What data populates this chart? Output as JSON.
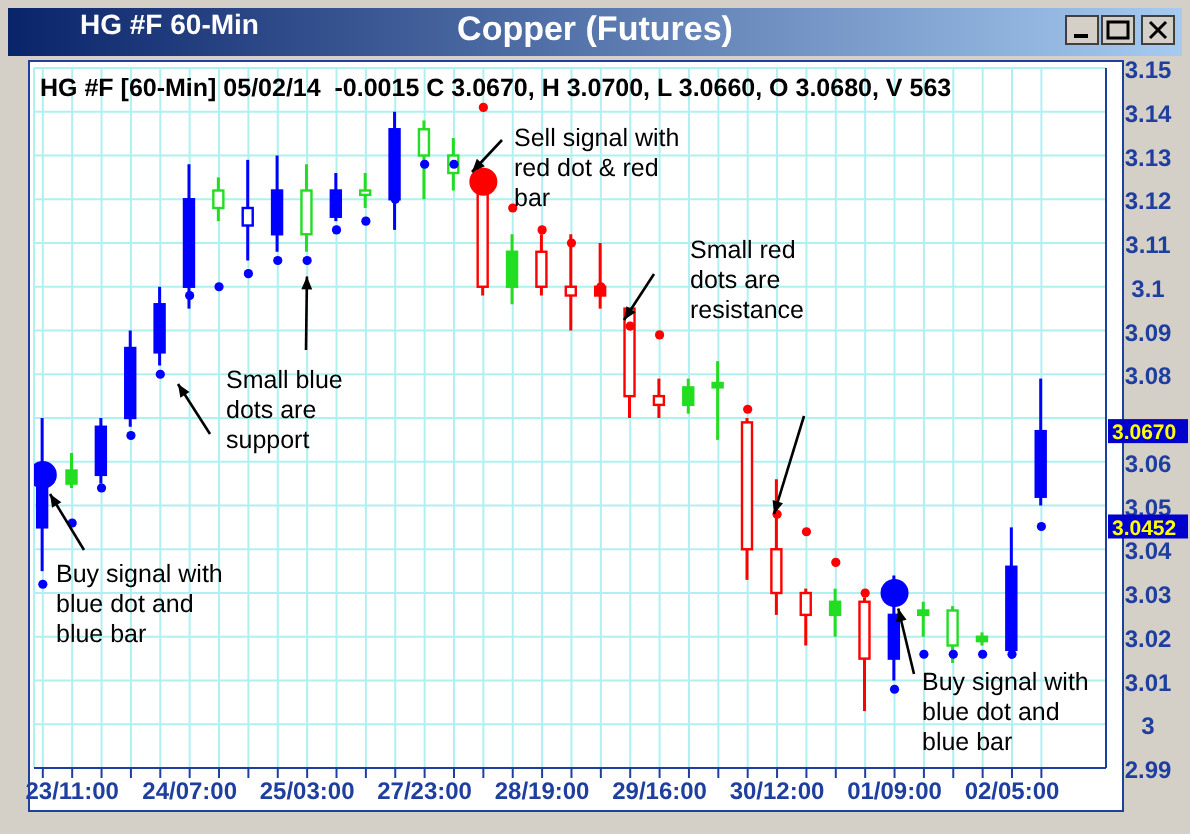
{
  "chart_data": {
    "type": "candlestick",
    "title": "Copper (Futures)",
    "subtitle": "HG #F [60-Min] 05/02/14  -0.0015 C 3.0670, H 3.0700, L 3.0660, O 3.0680, V 563",
    "annotations": [
      "HG #F 60-Min",
      "Sell signal with red dot & red bar",
      "Small red dots are resistance",
      {
        "text": "Small blue dots are support",
        "x": "25/03:00",
        "y": 3.106
      },
      "Buy signal with blue dot and blue bar",
      {
        "text": "Buy signal with blue dot and blue bar",
        "x": "01/09:00",
        "y": 3.03
      }
    ],
    "categories": [
      null,
      "23/11:00",
      null,
      null,
      null,
      "24/07:00",
      null,
      null,
      null,
      "25/03:00",
      null,
      null,
      null,
      "27/23:00",
      null,
      null,
      null,
      "28/19:00",
      null,
      null,
      null,
      "29/16:00",
      null,
      null,
      null,
      "30/12:00",
      null,
      null,
      null,
      "01/09:00",
      null,
      null,
      null,
      "02/05:00",
      null
    ],
    "ohlc": [
      [
        3.045,
        3.07,
        3.035,
        3.055
      ],
      [
        3.055,
        3.062,
        3.054,
        3.058
      ],
      [
        3.057,
        3.07,
        3.055,
        3.068
      ],
      [
        3.07,
        3.09,
        3.068,
        3.086
      ],
      [
        3.085,
        3.1,
        3.082,
        3.096
      ],
      [
        3.1,
        3.128,
        3.095,
        3.12
      ],
      [
        3.122,
        3.125,
        3.115,
        3.118
      ],
      [
        3.118,
        3.129,
        3.106,
        3.114
      ],
      [
        3.112,
        3.13,
        3.108,
        3.122
      ],
      [
        3.122,
        3.128,
        3.108,
        3.112
      ],
      [
        3.116,
        3.126,
        3.115,
        3.122
      ],
      [
        3.122,
        3.126,
        3.118,
        3.121
      ],
      [
        3.12,
        3.14,
        3.113,
        3.136
      ],
      [
        3.136,
        3.138,
        3.12,
        3.13
      ],
      [
        3.13,
        3.134,
        3.122,
        3.126
      ],
      [
        3.125,
        3.126,
        3.098,
        3.1
      ],
      [
        3.1,
        3.112,
        3.096,
        3.108
      ],
      [
        3.108,
        3.112,
        3.098,
        3.1
      ],
      [
        3.1,
        3.112,
        3.09,
        3.098
      ],
      [
        3.098,
        3.11,
        3.095,
        3.1
      ],
      [
        3.095,
        3.095,
        3.07,
        3.075
      ],
      [
        3.075,
        3.079,
        3.07,
        3.073
      ],
      [
        3.073,
        3.079,
        3.071,
        3.077
      ],
      [
        3.077,
        3.083,
        3.065,
        3.078
      ],
      [
        3.069,
        3.07,
        3.033,
        3.04
      ],
      [
        3.04,
        3.056,
        3.025,
        3.03
      ],
      [
        3.03,
        3.031,
        3.018,
        3.025
      ],
      [
        3.025,
        3.031,
        3.02,
        3.028
      ],
      [
        3.028,
        3.029,
        3.003,
        3.015
      ],
      [
        3.015,
        3.034,
        3.01,
        3.025
      ],
      [
        3.025,
        3.028,
        3.02,
        3.026
      ],
      [
        3.026,
        3.027,
        3.014,
        3.018
      ],
      [
        3.019,
        3.021,
        3.018,
        3.02
      ],
      [
        3.017,
        3.045,
        3.015,
        3.036
      ],
      [
        3.052,
        3.079,
        3.05,
        3.067
      ]
    ],
    "colors": [
      "#0000ff",
      "#22dd22",
      "#0000ff",
      "#0000ff",
      "#0000ff",
      "#0000ff",
      "#22dd22",
      "#0000ff",
      "#0000ff",
      "#22dd22",
      "#0000ff",
      "#22dd22",
      "#0000ff",
      "#22dd22",
      "#22dd22",
      "#ff0000",
      "#22dd22",
      "#ff0000",
      "#ff0000",
      "#ff0000",
      "#ff0000",
      "#ff0000",
      "#22dd22",
      "#22dd22",
      "#ff0000",
      "#ff0000",
      "#ff0000",
      "#22dd22",
      "#ff0000",
      "#0000ff",
      "#22dd22",
      "#22dd22",
      "#22dd22",
      "#0000ff",
      "#0000ff"
    ],
    "series": [
      {
        "type": "scatter",
        "color": "#0000ff",
        "values": [
          3.032,
          3.046,
          3.054,
          3.066,
          3.08,
          3.098,
          3.1,
          3.103,
          3.106,
          3.106,
          3.113,
          3.115,
          3.12,
          3.128,
          3.128,
          null,
          null,
          null,
          null,
          null,
          null,
          null,
          null,
          null,
          null,
          null,
          null,
          null,
          null,
          3.008,
          3.016,
          3.016,
          3.016,
          3.016,
          3.0452
        ]
      },
      {
        "type": "scatter",
        "color": "#ff0000",
        "values": [
          null,
          null,
          null,
          null,
          null,
          null,
          null,
          null,
          null,
          null,
          null,
          null,
          null,
          null,
          null,
          3.141,
          3.118,
          3.113,
          3.11,
          3.1,
          3.091,
          3.089,
          null,
          null,
          3.072,
          3.048,
          3.044,
          3.037,
          3.03,
          null,
          null,
          null,
          null,
          null,
          null
        ]
      },
      {
        "type": "scatter",
        "color": "#0000ff",
        "values": [
          3.057,
          null,
          null,
          null,
          null,
          null,
          null,
          null,
          null,
          null,
          null,
          null,
          null,
          null,
          null,
          null,
          null,
          null,
          null,
          null,
          null,
          null,
          null,
          null,
          null,
          null,
          null,
          null,
          null,
          3.03,
          null,
          null,
          null,
          null,
          null
        ]
      },
      {
        "type": "scatter",
        "color": "#ff0000",
        "values": [
          null,
          null,
          null,
          null,
          null,
          null,
          null,
          null,
          null,
          null,
          null,
          null,
          null,
          null,
          null,
          3.124,
          null,
          null,
          null,
          null,
          null,
          null,
          null,
          null,
          null,
          null,
          null,
          null,
          null,
          null,
          null,
          null,
          null,
          null,
          null
        ]
      }
    ],
    "marker": "circle",
    "grid": true,
    "ylim": [
      2.99,
      3.15
    ],
    "yticks": [
      2.99,
      3,
      3.01,
      3.02,
      3.03,
      3.04,
      3.05,
      3.06,
      {
        "value": 3.07,
        "label": null
      },
      3.08,
      3.09,
      3.1,
      3.11,
      3.12,
      3.13,
      3.14,
      3.15,
      {
        "value": 3.067,
        "label": "3.0670"
      },
      {
        "value": 3.0452,
        "label": "3.0452"
      }
    ]
  }
}
